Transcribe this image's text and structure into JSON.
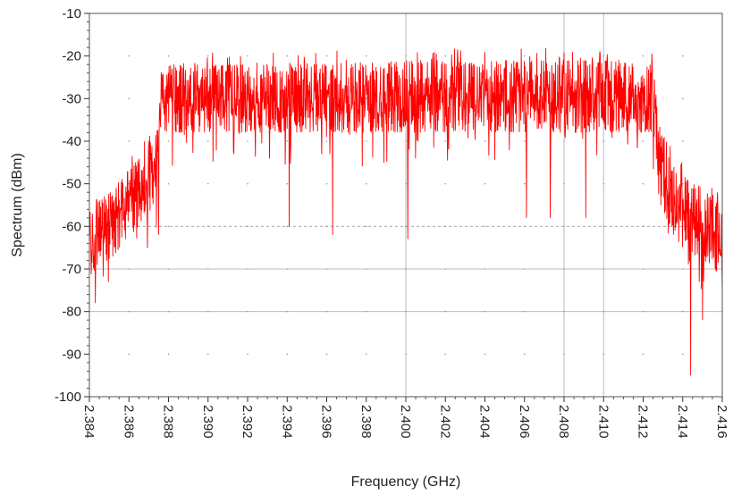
{
  "chart_data": {
    "type": "line",
    "title": "",
    "xlabel": "Frequency (GHz)",
    "ylabel": "Spectrum (dBm)",
    "xlim": [
      2.384,
      2.416
    ],
    "ylim": [
      -100,
      -10
    ],
    "x_ticks": [
      2.384,
      2.386,
      2.388,
      2.39,
      2.392,
      2.394,
      2.396,
      2.398,
      2.4,
      2.402,
      2.404,
      2.406,
      2.408,
      2.41,
      2.412,
      2.414,
      2.416
    ],
    "x_tick_labels": [
      "2.384",
      "2.386",
      "2.388",
      "2.390",
      "2.392",
      "2.394",
      "2.396",
      "2.398",
      "2.400",
      "2.402",
      "2.404",
      "2.406",
      "2.408",
      "2.410",
      "2.412",
      "2.414",
      "2.416"
    ],
    "y_ticks": [
      -10,
      -20,
      -30,
      -40,
      -50,
      -60,
      -70,
      -80,
      -90,
      -100
    ],
    "y_tick_labels": [
      "-10",
      "-20",
      "-30",
      "-40",
      "-50",
      "-60",
      "-70",
      "-80",
      "-90",
      "-100"
    ],
    "grid": {
      "vertical_x": [
        2.4,
        2.408,
        2.41
      ],
      "horizontal_solid_y": [
        -70,
        -80
      ],
      "horizontal_dashed_y": [
        -60
      ]
    },
    "series": [
      {
        "color": "#ff0000",
        "envelope": {
          "x": [
            2.384,
            2.3845,
            2.385,
            2.386,
            2.387,
            2.3875,
            2.3877,
            2.388,
            2.39,
            2.395,
            2.4,
            2.405,
            2.41,
            2.412,
            2.4125,
            2.4128,
            2.4135,
            2.414,
            2.415,
            2.4158,
            2.416
          ],
          "top": [
            -56,
            -54,
            -52,
            -47,
            -41,
            -36,
            -22,
            -22,
            -22,
            -22,
            -21,
            -21,
            -21,
            -22,
            -22,
            -36,
            -46,
            -48,
            -51,
            -55,
            -57
          ],
          "bottom": [
            -73,
            -70,
            -68,
            -63,
            -57,
            -52,
            -38,
            -38,
            -38,
            -38,
            -38,
            -38,
            -38,
            -38,
            -38,
            -54,
            -62,
            -65,
            -68,
            -71,
            -74
          ]
        },
        "dips": [
          {
            "x": 2.3843,
            "y": -78
          },
          {
            "x": 2.3875,
            "y": -62
          },
          {
            "x": 2.3941,
            "y": -60
          },
          {
            "x": 2.3963,
            "y": -62
          },
          {
            "x": 2.4001,
            "y": -63
          },
          {
            "x": 2.4061,
            "y": -58
          },
          {
            "x": 2.4073,
            "y": -58
          },
          {
            "x": 2.4091,
            "y": -58
          },
          {
            "x": 2.4144,
            "y": -95
          },
          {
            "x": 2.415,
            "y": -82
          },
          {
            "x": 2.416,
            "y": -76
          }
        ]
      }
    ]
  }
}
